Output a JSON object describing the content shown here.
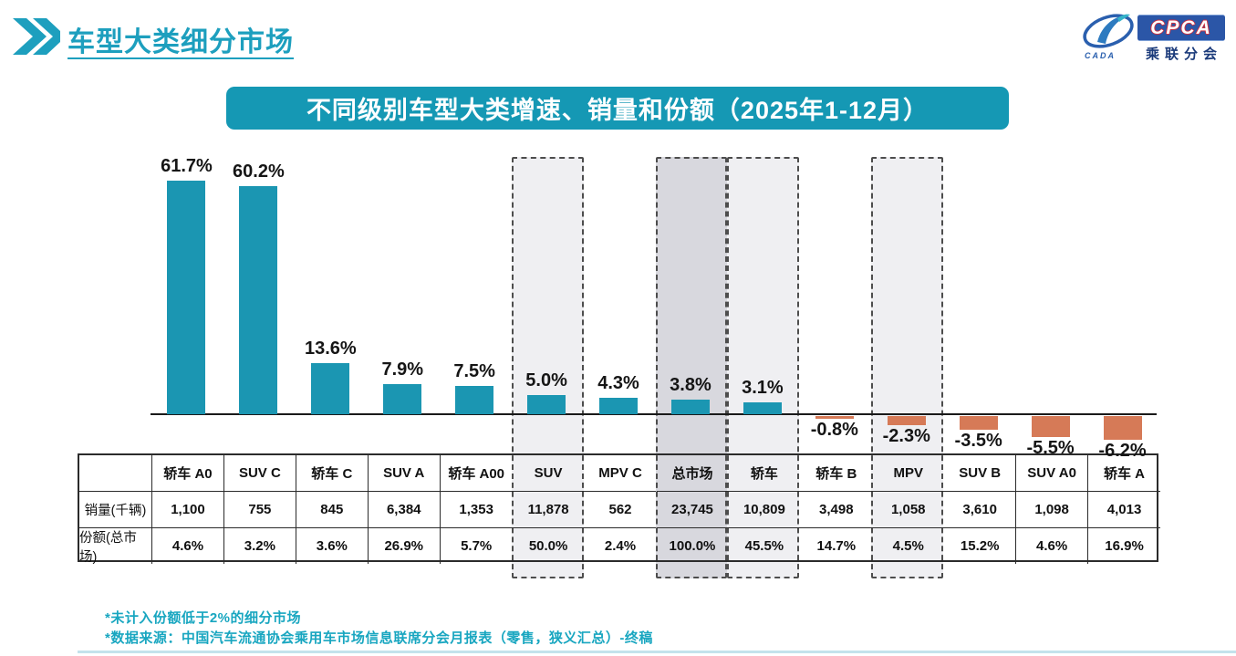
{
  "header": {
    "title": "车型大类细分市场"
  },
  "logo": {
    "cpca": "CPCA",
    "sub": "乘联分会",
    "cada": "CADA"
  },
  "banner": {
    "title": "不同级别车型大类增速、销量和份额（2025年1-12月）"
  },
  "chart_data": {
    "type": "bar",
    "title": "不同级别车型大类增速、销量和份额（2025年1-12月）",
    "categories": [
      "轿车 A0",
      "SUV C",
      "轿车 C",
      "SUV A",
      "轿车 A00",
      "SUV",
      "MPV C",
      "总市场",
      "轿车",
      "轿车 B",
      "MPV",
      "SUV B",
      "SUV A0",
      "轿车 A"
    ],
    "values": [
      61.7,
      60.2,
      13.6,
      7.9,
      7.5,
      5.0,
      4.3,
      3.8,
      3.1,
      -0.8,
      -2.3,
      -3.5,
      -5.5,
      -6.2
    ],
    "value_unit": "%",
    "sales_thousands": [
      "1,100",
      "755",
      "845",
      "6,384",
      "1,353",
      "11,878",
      "562",
      "23,745",
      "10,809",
      "3,498",
      "1,058",
      "3,610",
      "1,098",
      "4,013"
    ],
    "share_of_total": [
      "4.6%",
      "3.2%",
      "3.6%",
      "26.9%",
      "5.7%",
      "50.0%",
      "2.4%",
      "100.0%",
      "45.5%",
      "14.7%",
      "4.5%",
      "15.2%",
      "4.6%",
      "16.9%"
    ],
    "highlight_indices": [
      5,
      7,
      8,
      10
    ],
    "highlighted_categories": [
      "SUV",
      "总市场",
      "轿车",
      "MPV"
    ],
    "xlabel": "",
    "ylabel": "",
    "ylim": [
      -10,
      70
    ],
    "grid": false,
    "legend": "none",
    "colors": {
      "positive_bar": "#1b96b2",
      "negative_bar": "#d67a57",
      "highlight_fill": "#efeff2",
      "highlight_fill_total": "#d8d8de",
      "dash_border": "#4d4d4d",
      "banner_bg": "#1598b4",
      "title_teal": "#1d9fbe",
      "footnote_teal": "#18a6c0"
    }
  },
  "table": {
    "row_labels": [
      "销量(千辆)",
      "份额(总市场)"
    ]
  },
  "footnotes": [
    "*未计入份额低于2%的细分市场",
    "*数据来源：中国汽车流通协会乘用车市场信息联席分会月报表（零售，狭义汇总）-终稿"
  ]
}
